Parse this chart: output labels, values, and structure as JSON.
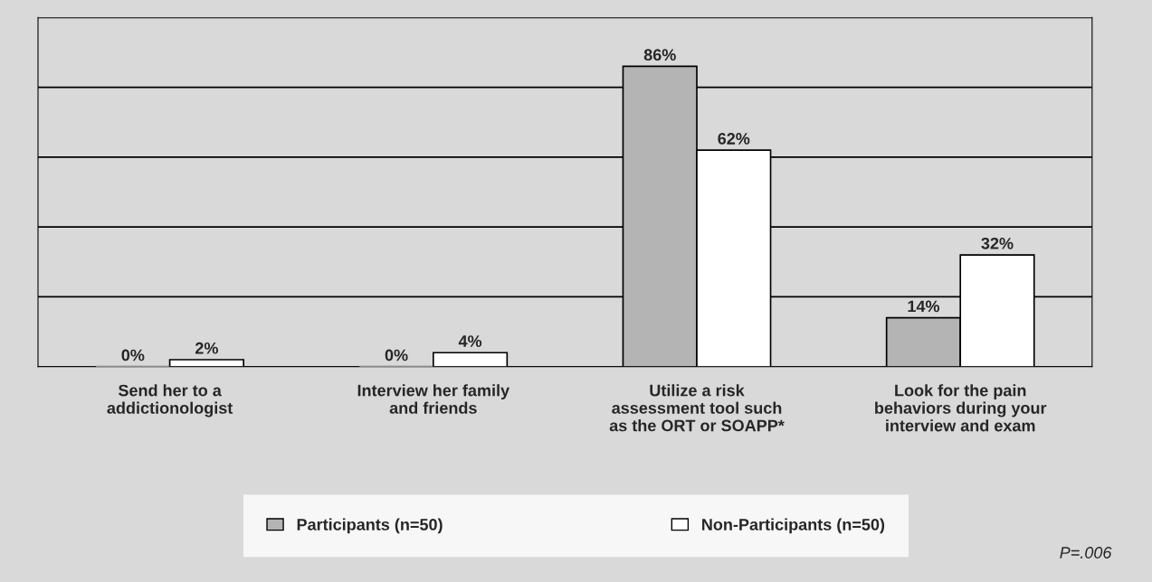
{
  "chart_data": {
    "type": "bar",
    "categories": [
      "Send her to a\naddictionologist",
      "Interview her family\nand friends",
      "Utilize a risk\nassessment tool such\nas the ORT or SOAPP*",
      "Look for the pain\nbehaviors during your\ninterview and exam"
    ],
    "series": [
      {
        "name": "Participants (n=50)",
        "color": "#b4b4b4",
        "values": [
          0,
          0,
          86,
          14
        ],
        "value_labels": [
          "0%",
          "0%",
          "86%",
          "14%"
        ]
      },
      {
        "name": "Non-Participants (n=50)",
        "color": "#ffffff",
        "values": [
          2,
          4,
          62,
          32
        ],
        "value_labels": [
          "2%",
          "4%",
          "62%",
          "32%"
        ]
      }
    ],
    "ylim": [
      0,
      100
    ],
    "yticks": [
      {
        "value": 0,
        "label": null
      },
      {
        "value": 20,
        "label": null
      },
      {
        "value": 40,
        "label": null
      },
      {
        "value": 60,
        "label": null
      },
      {
        "value": 80,
        "label": null
      },
      {
        "value": 100,
        "label": null
      }
    ],
    "tick_labels": "x",
    "grid": "y",
    "legend": "bottom",
    "annotations": [
      "P=.006"
    ]
  }
}
